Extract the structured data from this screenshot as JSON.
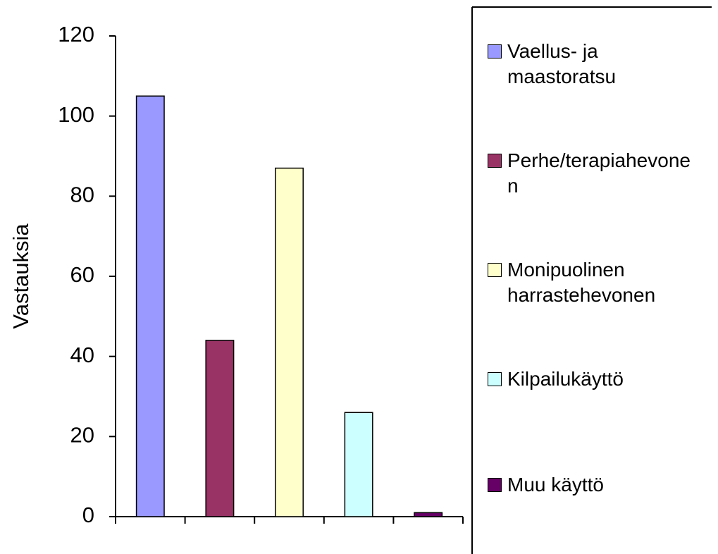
{
  "chart_data": {
    "type": "bar",
    "y_label": "Vastauksia",
    "categories": [
      "Vaellus- ja maastoratsu",
      "Perhe/terapiahevonen",
      "Monipuolinen harrastehevonen",
      "Kilpailukäyttö",
      "Muu käyttö"
    ],
    "values": [
      105,
      44,
      87,
      26,
      1
    ],
    "colors": [
      "#9999ff",
      "#993366",
      "#ffffcc",
      "#ccffff",
      "#660066"
    ],
    "ylim": [
      0,
      120
    ],
    "yticks": [
      0,
      20,
      40,
      60,
      80,
      100,
      120
    ],
    "legend": "right"
  }
}
